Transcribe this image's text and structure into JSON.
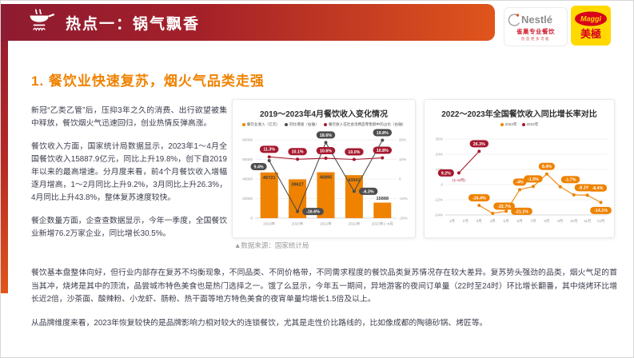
{
  "header": {
    "title": "热点一：锅气飘香",
    "logos": {
      "nestle_wordmark": "Nestlé",
      "nestle_cn": "雀巢专业餐饮",
      "nestle_tagline": "创造更多可能",
      "maggi_wordmark": "Maggi",
      "maggi_cn": "美極"
    }
  },
  "main": {
    "section_title": "1. 餐饮业快速复苏，烟火气品类走强",
    "left_paragraphs": [
      "新冠“乙类乙管”后，压抑3年之久的消费、出行欲望被集中释放，餐饮烟火气迅速回归，创业热情反弹高涨。",
      "餐饮收入方面，国家统计局数据显示，2023年1～4月全国餐饮收入15887.9亿元，同比上升19.8%，创下自2019年以来的最高增速。分月度来看，前4个月餐饮收入增幅逐月增高，1～2月同比上升9.2%，3月同比上升26.3%，4月同比上升43.8%，整体复苏速度较快。",
      "餐企数量方面，企查查数据显示，今年一季度，全国餐饮业新增76.2万家企业，同比增长30.5%。"
    ],
    "source_caption": "▲数据来源：国家统计局",
    "bottom_paragraphs": [
      "餐饮基本盘整体向好，但行业内部存在复苏不均衡现象，不同品类、不同价格带，不同需求程度的餐饮品类复苏情况存在较大差异。复苏势头强劲的品类，烟火气足的首当其冲，烧烤是其中的顶流，品尝城市特色美食也是热门选择之一。饿了么显示，今年五一期间，异地游客的夜间订单量（22时至24时）环比增长翻番，其中烧烤环比增长近2倍，沙茶面、酸辣粉、小龙虾、肠粉、热干面等地方特色美食的夜宵单量均增长1.5倍及以上。",
      "从品牌维度来看，2023年恢复较快的是品牌影响力相对较大的连锁餐饮，尤其是走性价比路线的，比如像成都的陶德砂锅、烤匠等。"
    ]
  },
  "colors": {
    "banner_dark": "#8e1b31",
    "banner_orange": "#e0551c",
    "section_title": "#ef8200",
    "bar_orange": "#ef8200",
    "line_dark": "#4d4d4d",
    "line_crimson": "#a6192e",
    "maggi_yellow": "#ffd900",
    "maggi_red": "#d8001b"
  },
  "chart_data": [
    {
      "type": "combo-bar-line",
      "title": "2019～2023年4月餐饮收入变化情况",
      "categories": [
        "2019年",
        "2020年",
        "2021年",
        "2022年",
        "2023年1~4月"
      ],
      "bar_series": {
        "name": "餐饮业收入（亿元）",
        "color": "#ef8200",
        "values": [
          46721,
          39627,
          46895,
          43941,
          15888
        ]
      },
      "line_series": [
        {
          "name": "同比增速（右轴）",
          "color": "#4d4d4d",
          "values": [
            9.4,
            -16.6,
            18.6,
            -6.3,
            19.8
          ],
          "labels": [
            "9.4%",
            "-16.6%",
            "18.6%",
            "-6.3%",
            "19.8%"
          ],
          "label_pos": [
            "bl",
            "r",
            "t",
            "r",
            "t"
          ]
        },
        {
          "name": "餐饮收入在社会消费品零售额中的占比（右轴）",
          "color": "#a6192e",
          "values": [
            11.3,
            10.1,
            10.6,
            10.0,
            10.8
          ],
          "labels": [
            "11.3%",
            "10.1%",
            "10.6%",
            "10.0%",
            "10.8%"
          ],
          "label_pos": [
            "t",
            "t",
            "t",
            "t",
            "t"
          ]
        }
      ],
      "y_left": {
        "min": 0,
        "max": 80000,
        "ticks": [
          "80000",
          "60000",
          "40000",
          "20000",
          "0"
        ]
      },
      "y_right": {
        "min": -20,
        "max": 20,
        "ticks": [
          "20%",
          "10%",
          "0",
          "-10%",
          "-20%"
        ]
      },
      "grid": true,
      "legend_position": "top"
    },
    {
      "type": "line",
      "title": "2022～2023年全国餐饮收入同比增长率对比",
      "x_ticks": [
        "1月",
        "2月",
        "3月",
        "4月",
        "5月",
        "6月",
        "7月",
        "8月",
        "9月",
        "10月",
        "11月",
        "12月"
      ],
      "y": {
        "min": -24,
        "max": 36,
        "ticks": [
          "36%",
          "24%",
          "12%",
          "0",
          "-12%",
          "-24%"
        ]
      },
      "series": [
        {
          "name": "2022年",
          "color": "#ef8200",
          "points": [
            {
              "x": 3,
              "v": -16.4,
              "label": "-16.4%",
              "lp": "t"
            },
            {
              "x": 4,
              "v": -22.7,
              "label": "-22.7%",
              "lp": "tr"
            },
            {
              "x": 5,
              "v": -21.1,
              "label": "-21.1%",
              "lp": "r"
            },
            {
              "x": 6,
              "v": -4,
              "label": "-4%",
              "lp": "t"
            },
            {
              "x": 7,
              "v": -1.5,
              "label": "-1.5%",
              "lp": "t"
            },
            {
              "x": 8,
              "v": 8.4,
              "label": "8.4%",
              "lp": "t"
            },
            {
              "x": 9,
              "v": -1.7,
              "label": "-1.7%",
              "lp": "tr"
            },
            {
              "x": 10,
              "v": -8.1,
              "label": "-8.1%",
              "lp": "tr"
            },
            {
              "x": 11,
              "v": -8.4,
              "label": "-8.4%",
              "lp": "tr"
            },
            {
              "x": 12,
              "v": -14.1,
              "label": "-14.1%",
              "lp": "b"
            }
          ]
        },
        {
          "name": "2023年",
          "color": "#a6192e",
          "points": [
            {
              "x": 1.5,
              "v": 9.2,
              "label": "9.2%",
              "lp": "l",
              "note": "(1~2月)"
            },
            {
              "x": 3,
              "v": 26.3,
              "label": "26.3%",
              "lp": "t"
            }
          ]
        }
      ],
      "grid": true,
      "legend_position": "top"
    }
  ]
}
